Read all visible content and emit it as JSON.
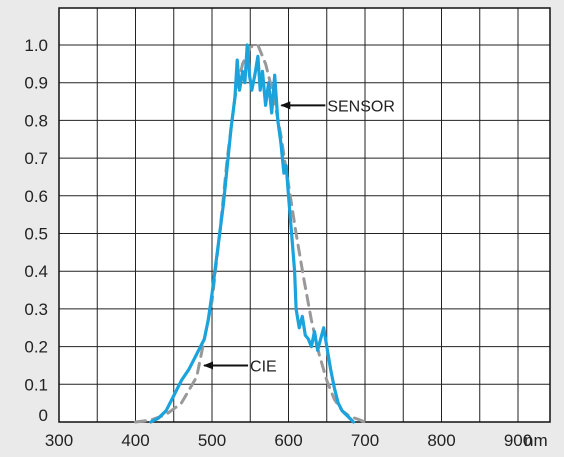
{
  "chart_data": {
    "type": "line",
    "title": "",
    "xlabel": "",
    "ylabel": "",
    "x_unit": "nm",
    "xlim": [
      300,
      900
    ],
    "ylim": [
      0,
      1.0
    ],
    "grid": true,
    "x_ticks": [
      "300",
      "400",
      "500",
      "600",
      "700",
      "800",
      "900"
    ],
    "y_ticks": [
      "0",
      "0.1",
      "0.2",
      "0.3",
      "0.4",
      "0.5",
      "0.6",
      "0.7",
      "0.8",
      "0.9",
      "1.0"
    ],
    "series": [
      {
        "name": "SENSOR",
        "color": "#1aa3dc",
        "style": "solid",
        "points": [
          [
            420,
            0
          ],
          [
            430,
            0.01
          ],
          [
            440,
            0.03
          ],
          [
            450,
            0.07
          ],
          [
            460,
            0.11
          ],
          [
            470,
            0.14
          ],
          [
            480,
            0.18
          ],
          [
            490,
            0.22
          ],
          [
            495,
            0.27
          ],
          [
            500,
            0.34
          ],
          [
            505,
            0.42
          ],
          [
            510,
            0.5
          ],
          [
            515,
            0.58
          ],
          [
            520,
            0.68
          ],
          [
            525,
            0.78
          ],
          [
            530,
            0.86
          ],
          [
            533,
            0.96
          ],
          [
            536,
            0.88
          ],
          [
            540,
            0.93
          ],
          [
            543,
            0.9
          ],
          [
            546,
            1.0
          ],
          [
            549,
            0.92
          ],
          [
            552,
            0.88
          ],
          [
            556,
            0.92
          ],
          [
            560,
            0.97
          ],
          [
            563,
            0.88
          ],
          [
            566,
            0.93
          ],
          [
            570,
            0.84
          ],
          [
            574,
            0.9
          ],
          [
            578,
            0.82
          ],
          [
            582,
            0.92
          ],
          [
            586,
            0.8
          ],
          [
            590,
            0.74
          ],
          [
            594,
            0.66
          ],
          [
            597,
            0.68
          ],
          [
            600,
            0.6
          ],
          [
            604,
            0.5
          ],
          [
            608,
            0.4
          ],
          [
            610,
            0.3
          ],
          [
            614,
            0.25
          ],
          [
            618,
            0.28
          ],
          [
            622,
            0.23
          ],
          [
            626,
            0.22
          ],
          [
            630,
            0.2
          ],
          [
            634,
            0.24
          ],
          [
            638,
            0.19
          ],
          [
            642,
            0.22
          ],
          [
            646,
            0.25
          ],
          [
            650,
            0.2
          ],
          [
            655,
            0.14
          ],
          [
            660,
            0.09
          ],
          [
            665,
            0.05
          ],
          [
            670,
            0.03
          ],
          [
            675,
            0.02
          ],
          [
            680,
            0.01
          ],
          [
            685,
            0
          ]
        ]
      },
      {
        "name": "CIE",
        "color": "#999999",
        "style": "dashed",
        "points": [
          [
            400,
            0
          ],
          [
            420,
            0.005
          ],
          [
            440,
            0.02
          ],
          [
            460,
            0.05
          ],
          [
            480,
            0.12
          ],
          [
            500,
            0.32
          ],
          [
            510,
            0.5
          ],
          [
            520,
            0.7
          ],
          [
            530,
            0.86
          ],
          [
            540,
            0.95
          ],
          [
            550,
            0.995
          ],
          [
            560,
            1.0
          ],
          [
            570,
            0.95
          ],
          [
            580,
            0.87
          ],
          [
            590,
            0.76
          ],
          [
            600,
            0.63
          ],
          [
            610,
            0.5
          ],
          [
            620,
            0.38
          ],
          [
            630,
            0.27
          ],
          [
            640,
            0.18
          ],
          [
            650,
            0.11
          ],
          [
            660,
            0.06
          ],
          [
            670,
            0.03
          ],
          [
            680,
            0.015
          ],
          [
            690,
            0.008
          ],
          [
            700,
            0
          ]
        ]
      }
    ],
    "annotations": [
      {
        "label": "SENSOR",
        "target_x": 588,
        "target_y": 0.84
      },
      {
        "label": "CIE",
        "target_x": 487,
        "target_y": 0.15
      }
    ]
  }
}
